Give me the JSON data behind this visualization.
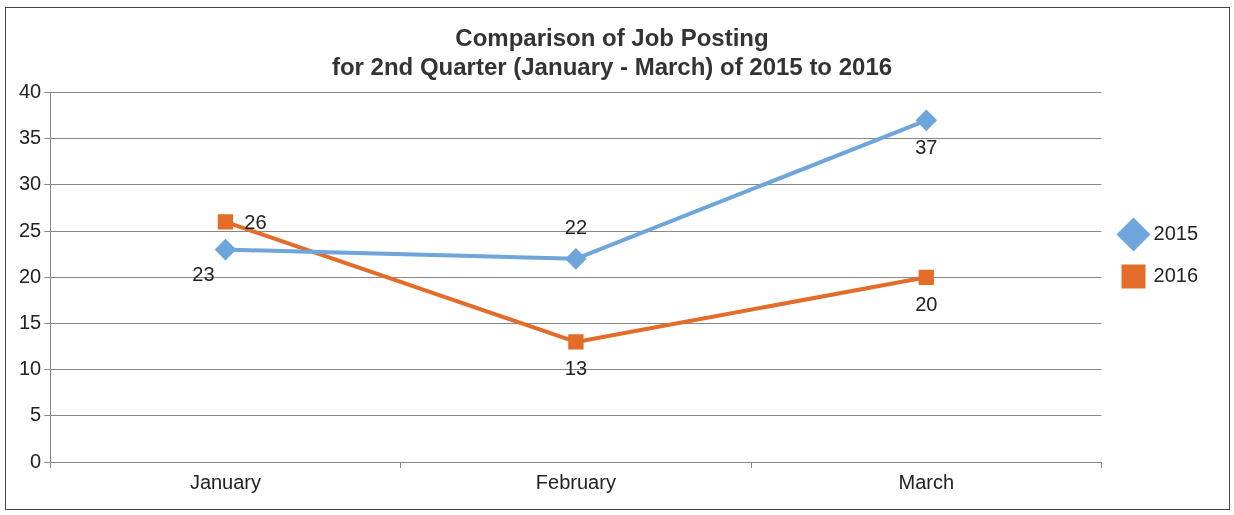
{
  "chart_data": {
    "type": "line",
    "title": [
      "Comparison of Job Posting",
      "for 2nd Quarter (January - March) of 2015 to 2016"
    ],
    "categories": [
      "January",
      "February",
      "March"
    ],
    "series": [
      {
        "name": "2015",
        "color": "#6ea6dc",
        "marker": "diamond",
        "values": [
          23,
          22,
          37
        ]
      },
      {
        "name": "2016",
        "color": "#e36c2a",
        "marker": "square",
        "values": [
          26,
          13,
          20
        ]
      }
    ],
    "ylim": [
      0,
      40
    ],
    "yticks": [
      0,
      5,
      10,
      15,
      20,
      25,
      30,
      35,
      40
    ],
    "grid": "y",
    "legend": "right",
    "data_labels": true
  }
}
